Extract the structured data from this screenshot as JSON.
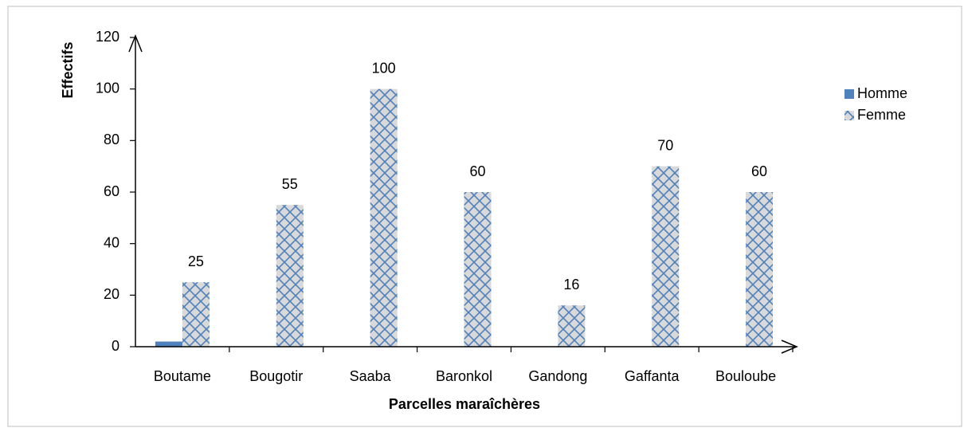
{
  "chart_data": {
    "type": "bar",
    "x_label": "Parcelles maraîchères",
    "y_label": "Effectifs",
    "categories": [
      "Boutame",
      "Bougotir",
      "Saaba",
      "Baronkol",
      "Gandong",
      "Gaffanta",
      "Bouloube"
    ],
    "series": [
      {
        "name": "Homme",
        "color": "#4f81bd",
        "values": [
          2,
          0,
          0,
          0,
          0,
          0,
          0
        ]
      },
      {
        "name": "Femme",
        "color": "#d9d9d9",
        "hatch": "#4f81bd",
        "show_labels": true,
        "values": [
          25,
          55,
          100,
          60,
          16,
          70,
          60
        ]
      }
    ],
    "ylim": [
      0,
      120
    ],
    "yticks": [
      0,
      20,
      40,
      60,
      80,
      100,
      120
    ],
    "legend": "right"
  }
}
